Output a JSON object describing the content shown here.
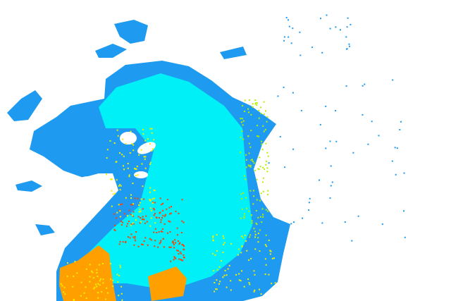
{
  "radar": {
    "colors": {
      "background": "#ffffff",
      "light_echo": "#1e9bf0",
      "moderate_echo": "#00f0f8",
      "edge_echo": "#f0f000",
      "edge_echo_green": "#b4f000",
      "heavy_echo": "#ffa000",
      "intense_echo": "#ff4000"
    }
  }
}
